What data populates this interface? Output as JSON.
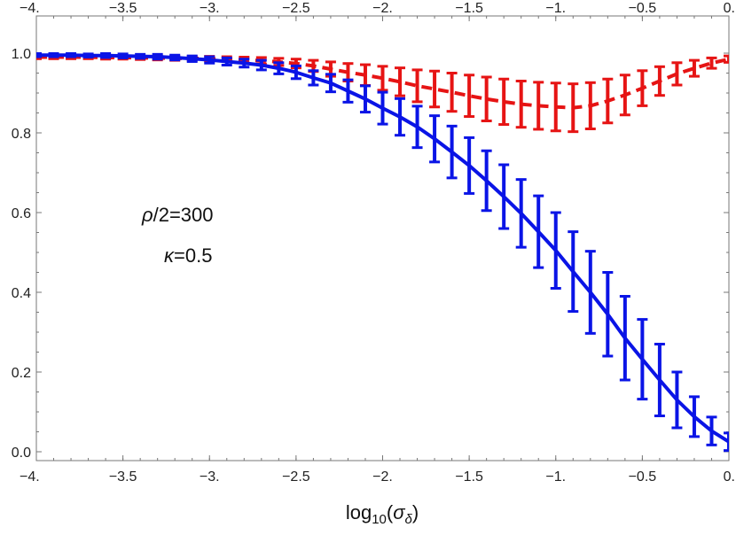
{
  "chart_data": {
    "type": "line",
    "xlabel_base": "log",
    "xlabel_sub": "10",
    "xlabel_open": "(",
    "xlabel_sigma": "σ",
    "xlabel_sigma_sub": "δ",
    "xlabel_close": ")",
    "xlim": [
      -4,
      0
    ],
    "ylim": [
      0,
      1.0
    ],
    "x_ticks": [
      {
        "value": -4,
        "label": "-4."
      },
      {
        "value": -3.5,
        "label": "-3.5"
      },
      {
        "value": -3,
        "label": "-3."
      },
      {
        "value": -2.5,
        "label": "-2.5"
      },
      {
        "value": -2,
        "label": "-2."
      },
      {
        "value": -1.5,
        "label": "-1.5"
      },
      {
        "value": -1,
        "label": "-1."
      },
      {
        "value": -0.5,
        "label": "-0.5"
      },
      {
        "value": 0,
        "label": "0."
      }
    ],
    "y_ticks": [
      {
        "value": 0.0,
        "label": "0.0"
      },
      {
        "value": 0.2,
        "label": "0.2"
      },
      {
        "value": 0.4,
        "label": "0.4"
      },
      {
        "value": 0.6,
        "label": "0.6"
      },
      {
        "value": 0.8,
        "label": "0.8"
      },
      {
        "value": 1.0,
        "label": "1.0"
      }
    ],
    "annotations": {
      "line1_rho": "ρ",
      "line1_rest": "/2=300",
      "line2_kappa": "κ",
      "line2_rest": "=0.5"
    },
    "series": [
      {
        "name": "blue-solid",
        "color": "#0a14e6",
        "style": "solid",
        "x": [
          -4.0,
          -3.9,
          -3.8,
          -3.7,
          -3.6,
          -3.5,
          -3.4,
          -3.3,
          -3.2,
          -3.1,
          -3.0,
          -2.9,
          -2.8,
          -2.7,
          -2.6,
          -2.5,
          -2.4,
          -2.3,
          -2.2,
          -2.1,
          -2.0,
          -1.9,
          -1.8,
          -1.7,
          -1.6,
          -1.5,
          -1.4,
          -1.3,
          -1.2,
          -1.1,
          -1.0,
          -0.9,
          -0.8,
          -0.7,
          -0.6,
          -0.5,
          -0.4,
          -0.3,
          -0.2,
          -0.1,
          0.0
        ],
        "y": [
          0.995,
          0.995,
          0.995,
          0.994,
          0.994,
          0.993,
          0.992,
          0.991,
          0.989,
          0.986,
          0.983,
          0.979,
          0.975,
          0.97,
          0.962,
          0.952,
          0.938,
          0.925,
          0.905,
          0.885,
          0.862,
          0.84,
          0.815,
          0.785,
          0.752,
          0.718,
          0.68,
          0.64,
          0.598,
          0.552,
          0.505,
          0.452,
          0.4,
          0.345,
          0.285,
          0.232,
          0.18,
          0.13,
          0.088,
          0.052,
          0.025
        ],
        "err": [
          0.004,
          0.004,
          0.004,
          0.004,
          0.005,
          0.005,
          0.005,
          0.006,
          0.006,
          0.007,
          0.008,
          0.009,
          0.01,
          0.012,
          0.014,
          0.016,
          0.018,
          0.022,
          0.028,
          0.033,
          0.04,
          0.046,
          0.052,
          0.058,
          0.065,
          0.07,
          0.075,
          0.08,
          0.085,
          0.09,
          0.095,
          0.1,
          0.103,
          0.105,
          0.105,
          0.1,
          0.09,
          0.07,
          0.05,
          0.035,
          0.022
        ]
      },
      {
        "name": "red-dashed",
        "color": "#e61414",
        "style": "dashed",
        "x": [
          -4.0,
          -3.9,
          -3.8,
          -3.7,
          -3.6,
          -3.5,
          -3.4,
          -3.3,
          -3.2,
          -3.1,
          -3.0,
          -2.9,
          -2.8,
          -2.7,
          -2.6,
          -2.5,
          -2.4,
          -2.3,
          -2.2,
          -2.1,
          -2.0,
          -1.9,
          -1.8,
          -1.7,
          -1.6,
          -1.5,
          -1.4,
          -1.3,
          -1.2,
          -1.1,
          -1.0,
          -0.9,
          -0.8,
          -0.7,
          -0.6,
          -0.5,
          -0.4,
          -0.3,
          -0.2,
          -0.1,
          0.0
        ],
        "y": [
          0.99,
          0.99,
          0.99,
          0.99,
          0.989,
          0.989,
          0.988,
          0.988,
          0.987,
          0.987,
          0.986,
          0.985,
          0.983,
          0.981,
          0.978,
          0.974,
          0.968,
          0.96,
          0.952,
          0.945,
          0.937,
          0.928,
          0.918,
          0.91,
          0.902,
          0.893,
          0.885,
          0.878,
          0.872,
          0.868,
          0.865,
          0.863,
          0.868,
          0.88,
          0.895,
          0.912,
          0.93,
          0.948,
          0.962,
          0.975,
          0.985
        ],
        "err": [
          0.004,
          0.004,
          0.004,
          0.004,
          0.004,
          0.004,
          0.004,
          0.005,
          0.005,
          0.005,
          0.006,
          0.006,
          0.007,
          0.008,
          0.009,
          0.011,
          0.014,
          0.018,
          0.022,
          0.026,
          0.03,
          0.035,
          0.04,
          0.045,
          0.048,
          0.052,
          0.055,
          0.057,
          0.058,
          0.059,
          0.06,
          0.06,
          0.058,
          0.055,
          0.05,
          0.044,
          0.036,
          0.028,
          0.02,
          0.013,
          0.008
        ]
      }
    ]
  }
}
